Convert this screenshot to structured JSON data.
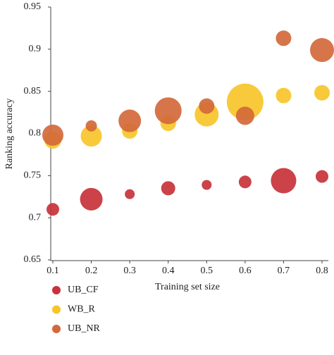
{
  "chart_data": {
    "type": "scatter",
    "x_label": "Training set size",
    "y_label": "Ranking accuracy",
    "x": [
      0.1,
      0.2,
      0.3,
      0.4,
      0.5,
      0.6,
      0.7,
      0.8
    ],
    "xlim": [
      0.1,
      0.8
    ],
    "xticks": [
      0.1,
      0.2,
      0.3,
      0.4,
      0.5,
      0.6,
      0.7,
      0.8
    ],
    "ylim": [
      0.65,
      0.95
    ],
    "yticks": [
      0.65,
      0.7,
      0.75,
      0.8,
      0.85,
      0.9,
      0.95
    ],
    "series": [
      {
        "name": "UB_CF",
        "color": "#c8323a",
        "values": [
          0.71,
          0.722,
          0.728,
          0.735,
          0.739,
          0.7425,
          0.744,
          0.749
        ],
        "sizes": [
          9,
          16,
          7,
          10,
          7,
          9,
          18,
          9
        ]
      },
      {
        "name": "WB_R",
        "color": "#f7c52a",
        "values": [
          0.792,
          0.797,
          0.803,
          0.812,
          0.8225,
          0.8375,
          0.845,
          0.8483
        ],
        "sizes": [
          12,
          15,
          11,
          11,
          17,
          26,
          11,
          11
        ]
      },
      {
        "name": "UB_NR",
        "color": "#d2693a",
        "values": [
          0.798,
          0.809,
          0.815,
          0.827,
          0.8325,
          0.821,
          0.913,
          0.899
        ],
        "sizes": [
          15,
          8,
          16,
          19,
          11,
          13,
          11,
          17
        ]
      }
    ]
  }
}
